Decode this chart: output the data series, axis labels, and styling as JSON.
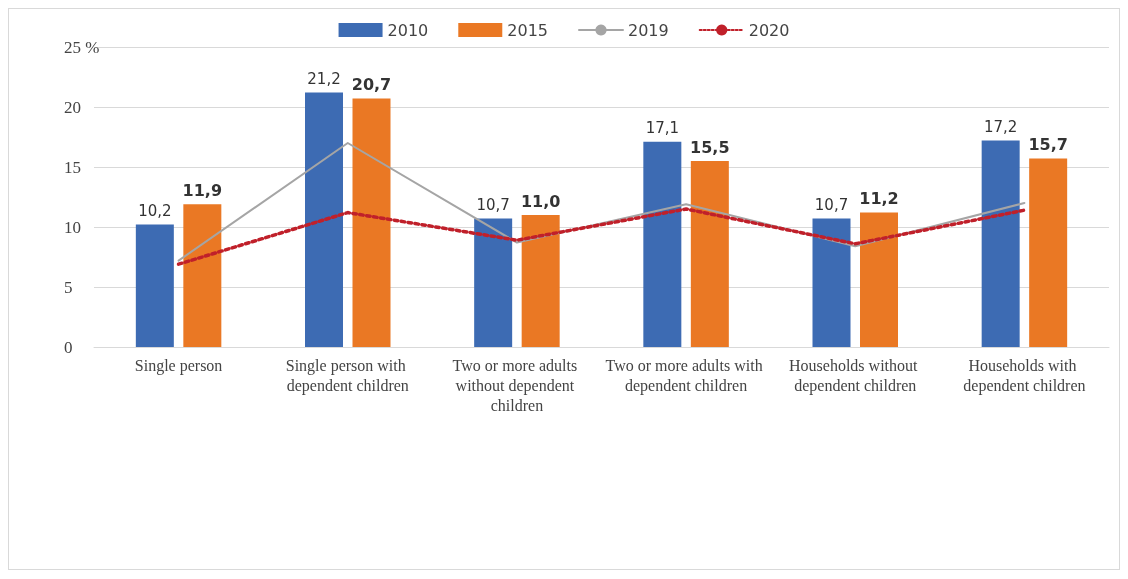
{
  "chart_data": {
    "type": "bar",
    "categories": [
      "Single person",
      "Single person with dependent children",
      "Two or more adults without dependent children",
      "Two or more adults with dependent children",
      "Households without dependent children",
      "Households with dependent children"
    ],
    "series": [
      {
        "name": "2010",
        "color": "#3d6bb3",
        "values": [
          10.2,
          21.2,
          10.7,
          17.1,
          10.7,
          17.2
        ],
        "value_labels": [
          "10,2",
          "21,2",
          "10,7",
          "17,1",
          "10,7",
          "17,2"
        ]
      },
      {
        "name": "2015",
        "color": "#ea7824",
        "values": [
          11.9,
          20.7,
          11.0,
          15.5,
          11.2,
          15.7
        ],
        "value_labels": [
          "11,9",
          "20,7",
          "11,0",
          "15,5",
          "11,2",
          "15,7"
        ]
      },
      {
        "name": "2019",
        "type": "line",
        "color": "#a5a5a5",
        "line_style": "solid",
        "values": [
          7.2,
          17.0,
          8.7,
          11.9,
          8.4,
          12.0
        ]
      },
      {
        "name": "2020",
        "type": "line",
        "color": "#c0202a",
        "line_style": "dotted",
        "values": [
          6.9,
          11.2,
          8.9,
          11.5,
          8.6,
          11.4
        ]
      }
    ],
    "ylim": [
      0,
      25
    ],
    "yticks": [
      0,
      5,
      10,
      15,
      20,
      {
        "value": 25,
        "label": "25 %"
      }
    ],
    "grid": "y",
    "legend": "top",
    "marker": "none"
  }
}
